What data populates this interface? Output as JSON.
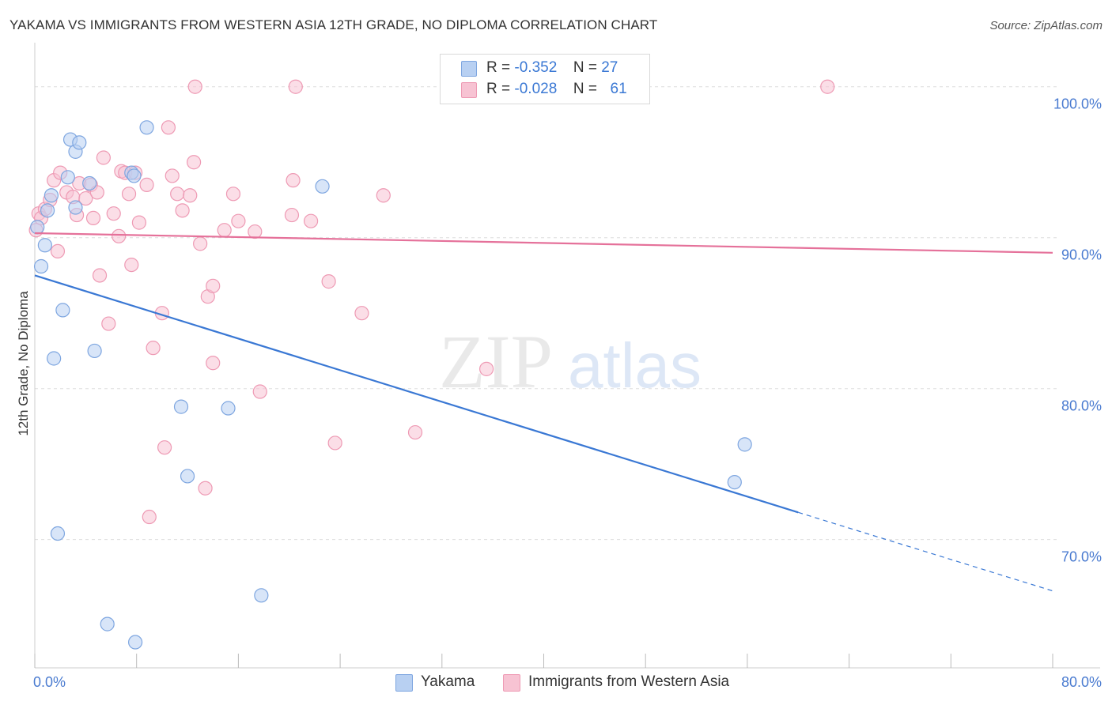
{
  "header": {
    "title": "YAKAMA VS IMMIGRANTS FROM WESTERN ASIA 12TH GRADE, NO DIPLOMA CORRELATION CHART",
    "source": "Source: ZipAtlas.com"
  },
  "watermark": {
    "zip": "ZIP",
    "atlas": "atlas"
  },
  "legend": {
    "rows": [
      {
        "r_label": "R =",
        "r_value": "-0.352",
        "n_label": "N =",
        "n_value": "27"
      },
      {
        "r_label": "R =",
        "r_value": "-0.028",
        "n_label": "N =",
        "n_value": "61"
      }
    ]
  },
  "bottom_legend": [
    "Yakama",
    "Immigrants from Western Asia"
  ],
  "colors": {
    "yakama_fill": "#b8d0f2",
    "yakama_stroke": "#7ea6e0",
    "yakama_line": "#3a78d4",
    "western_asia_fill": "#f7c3d3",
    "western_asia_stroke": "#ee9ab4",
    "western_asia_line": "#e5719a",
    "grid": "#dddddd",
    "axis_text": "#4a7bd0"
  },
  "chart_data": {
    "type": "scatter",
    "title": "YAKAMA VS IMMIGRANTS FROM WESTERN ASIA 12TH GRADE, NO DIPLOMA CORRELATION CHART",
    "ylabel": "12th Grade, No Diploma",
    "xlabel": "",
    "xlim": [
      0,
      80
    ],
    "ylim": [
      61.5,
      102.5
    ],
    "x_tick_labels": [
      "0.0%",
      "80.0%"
    ],
    "y_ticks": [
      100,
      90,
      80,
      70
    ],
    "y_tick_labels": [
      "100.0%",
      "90.0%",
      "80.0%",
      "70.0%"
    ],
    "grid": true,
    "legend_position": "top-center",
    "series": [
      {
        "name": "Yakama",
        "R": -0.352,
        "N": 27,
        "points": [
          [
            0.2,
            90.7
          ],
          [
            0.5,
            88.1
          ],
          [
            0.8,
            89.5
          ],
          [
            1.0,
            91.8
          ],
          [
            1.3,
            92.8
          ],
          [
            1.5,
            82.0
          ],
          [
            1.8,
            70.4
          ],
          [
            2.2,
            85.2
          ],
          [
            2.6,
            94.0
          ],
          [
            2.8,
            96.5
          ],
          [
            3.2,
            95.7
          ],
          [
            3.5,
            96.3
          ],
          [
            3.2,
            92.0
          ],
          [
            4.3,
            93.6
          ],
          [
            4.7,
            82.5
          ],
          [
            5.7,
            64.4
          ],
          [
            7.6,
            94.3
          ],
          [
            7.8,
            94.1
          ],
          [
            7.9,
            63.2
          ],
          [
            8.8,
            97.3
          ],
          [
            11.5,
            78.8
          ],
          [
            12.0,
            74.2
          ],
          [
            15.2,
            78.7
          ],
          [
            17.8,
            66.3
          ],
          [
            22.6,
            93.4
          ],
          [
            55.8,
            76.3
          ],
          [
            55.0,
            73.8
          ]
        ],
        "trend": {
          "x0": 0,
          "y0": 87.5,
          "x1": 60,
          "y1": 71.8,
          "dash_to_x": 80,
          "dash_to_y": 66.6
        }
      },
      {
        "name": "Immigrants from Western Asia",
        "R": -0.028,
        "N": 61,
        "points": [
          [
            0.1,
            90.5
          ],
          [
            0.3,
            91.6
          ],
          [
            0.5,
            91.3
          ],
          [
            0.8,
            91.9
          ],
          [
            1.2,
            92.5
          ],
          [
            1.5,
            93.8
          ],
          [
            1.8,
            89.1
          ],
          [
            2.0,
            94.3
          ],
          [
            2.5,
            93.0
          ],
          [
            3.0,
            92.7
          ],
          [
            3.3,
            91.5
          ],
          [
            3.5,
            93.6
          ],
          [
            4.0,
            92.6
          ],
          [
            4.4,
            93.5
          ],
          [
            4.6,
            91.3
          ],
          [
            4.9,
            93.0
          ],
          [
            5.1,
            87.5
          ],
          [
            5.4,
            95.3
          ],
          [
            5.8,
            84.3
          ],
          [
            6.2,
            91.6
          ],
          [
            6.6,
            90.1
          ],
          [
            6.8,
            94.4
          ],
          [
            7.1,
            94.3
          ],
          [
            7.4,
            92.9
          ],
          [
            7.6,
            88.2
          ],
          [
            7.9,
            94.3
          ],
          [
            8.2,
            91.0
          ],
          [
            8.8,
            93.5
          ],
          [
            9.0,
            71.5
          ],
          [
            9.3,
            82.7
          ],
          [
            10.0,
            85.0
          ],
          [
            10.2,
            76.1
          ],
          [
            10.5,
            97.3
          ],
          [
            10.8,
            94.1
          ],
          [
            11.2,
            92.9
          ],
          [
            11.6,
            91.8
          ],
          [
            12.2,
            92.8
          ],
          [
            12.5,
            95.0
          ],
          [
            12.6,
            100.0
          ],
          [
            13.0,
            89.6
          ],
          [
            13.4,
            73.4
          ],
          [
            13.6,
            86.1
          ],
          [
            14.0,
            81.7
          ],
          [
            14.0,
            86.8
          ],
          [
            14.9,
            90.5
          ],
          [
            15.6,
            92.9
          ],
          [
            16.0,
            91.1
          ],
          [
            17.3,
            90.4
          ],
          [
            17.7,
            79.8
          ],
          [
            20.2,
            91.5
          ],
          [
            20.3,
            93.8
          ],
          [
            20.5,
            100.0
          ],
          [
            21.7,
            91.1
          ],
          [
            23.1,
            87.1
          ],
          [
            23.6,
            76.4
          ],
          [
            25.7,
            85.0
          ],
          [
            27.4,
            92.8
          ],
          [
            29.9,
            77.1
          ],
          [
            35.5,
            81.3
          ],
          [
            44.1,
            100.0
          ],
          [
            62.3,
            100.0
          ]
        ],
        "trend": {
          "x0": 0,
          "y0": 90.3,
          "x1": 80,
          "y1": 89.0
        }
      }
    ]
  }
}
